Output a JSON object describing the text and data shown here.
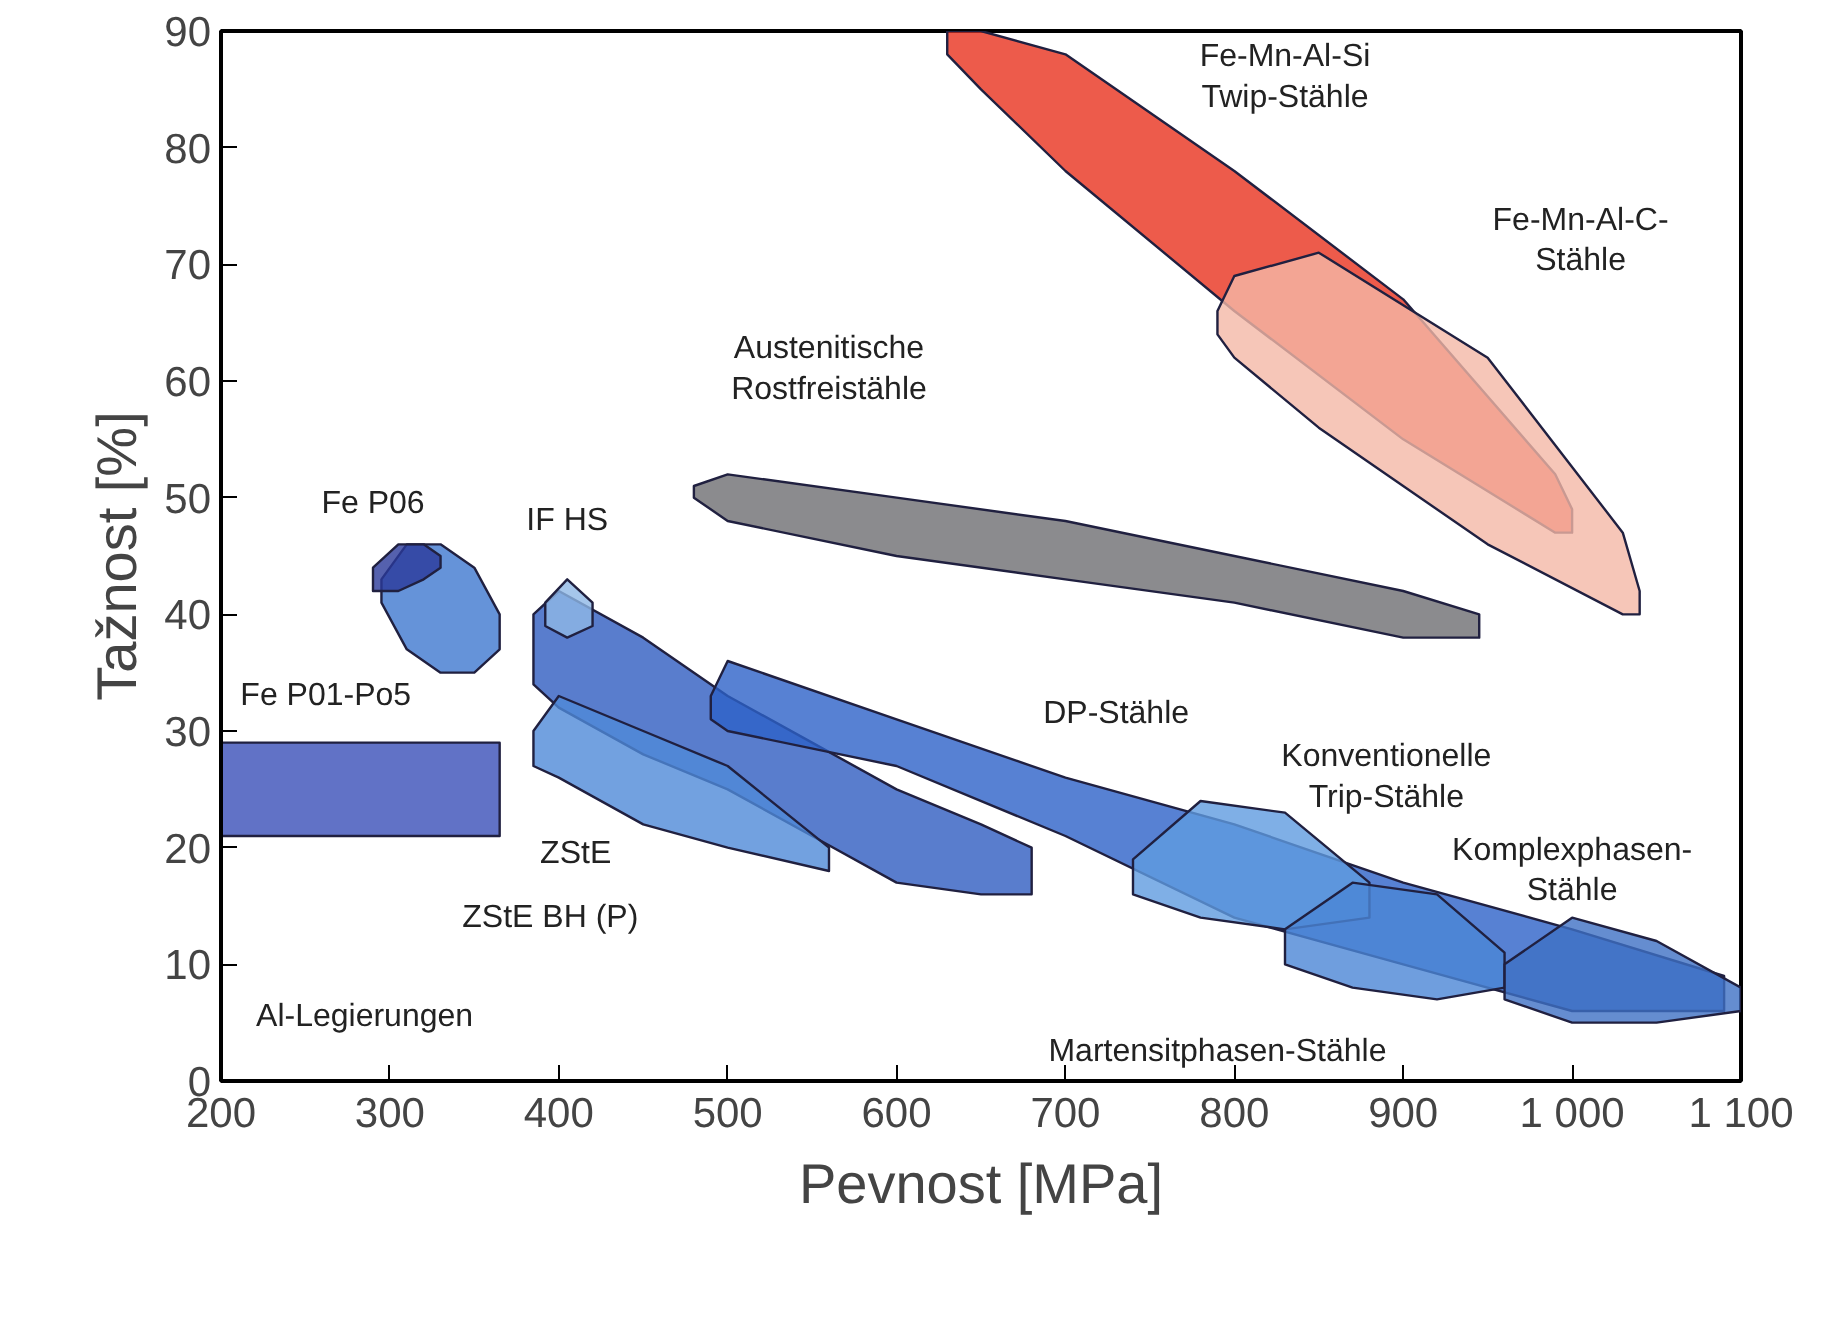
{
  "chart_data": {
    "type": "area",
    "xlabel": "Pevnost [MPa]",
    "ylabel": "Tažnost [%]",
    "xlim": [
      200,
      1100
    ],
    "ylim": [
      0,
      90
    ],
    "xticks": [
      200,
      300,
      400,
      500,
      600,
      700,
      800,
      900,
      {
        "value": 1000,
        "label": "1 000"
      },
      {
        "value": 1100,
        "label": "1 100"
      }
    ],
    "yticks": [
      0,
      10,
      20,
      30,
      40,
      50,
      60,
      70,
      80,
      90
    ],
    "grid": false,
    "series": [
      {
        "color": "#3a4fb8",
        "x": [
          200,
          365,
          365,
          200
        ],
        "values": [
          29,
          29,
          21,
          21
        ]
      },
      {
        "color": "#3f78d0",
        "x": [
          295,
          310,
          330,
          350,
          365,
          365,
          350,
          330,
          310,
          295
        ],
        "values": [
          43,
          46,
          46,
          44,
          40,
          37,
          35,
          35,
          37,
          41
        ]
      },
      {
        "color": "#2a3a9a",
        "x": [
          290,
          305,
          320,
          330,
          330,
          320,
          305,
          290
        ],
        "values": [
          44,
          46,
          46,
          45,
          44,
          43,
          42,
          42
        ]
      },
      {
        "color": "#2f5cc0",
        "x": [
          385,
          400,
          450,
          500,
          550,
          600,
          650,
          680,
          680,
          650,
          600,
          550,
          500,
          450,
          400,
          385
        ],
        "values": [
          40,
          42,
          38,
          33,
          29,
          25,
          22,
          20,
          16,
          16,
          17,
          21,
          25,
          28,
          32,
          34
        ]
      },
      {
        "color": "#4f8ad8",
        "x": [
          385,
          400,
          450,
          500,
          560,
          560,
          500,
          450,
          400,
          385
        ],
        "values": [
          30,
          33,
          30,
          27,
          20,
          18,
          20,
          22,
          26,
          27
        ]
      },
      {
        "color": "#8fb8e6",
        "x": [
          392,
          405,
          420,
          420,
          405,
          392
        ],
        "values": [
          41,
          43,
          41,
          39,
          38,
          39
        ]
      },
      {
        "color": "#2d62c8",
        "x": [
          490,
          500,
          600,
          700,
          800,
          900,
          1000,
          1090,
          1090,
          1000,
          900,
          800,
          700,
          600,
          500,
          490
        ],
        "values": [
          33,
          36,
          31,
          26,
          22,
          17,
          13,
          9,
          6,
          6,
          10,
          14,
          21,
          27,
          30,
          31
        ]
      },
      {
        "color": "#5f9be0",
        "x": [
          740,
          780,
          830,
          880,
          880,
          830,
          780,
          740
        ],
        "values": [
          19,
          24,
          23,
          17,
          14,
          13,
          14,
          16
        ]
      },
      {
        "color": "#4b86d6",
        "x": [
          830,
          870,
          920,
          960,
          960,
          920,
          870,
          830
        ],
        "values": [
          13,
          17,
          16,
          11,
          8,
          7,
          8,
          10
        ]
      },
      {
        "color": "#3f70c4",
        "x": [
          960,
          1000,
          1050,
          1100,
          1100,
          1050,
          1000,
          960
        ],
        "values": [
          10,
          14,
          12,
          8,
          6,
          5,
          5,
          7
        ]
      },
      {
        "color": "#6e6e72",
        "x": [
          480,
          500,
          600,
          700,
          800,
          900,
          945,
          945,
          900,
          800,
          700,
          600,
          500,
          480
        ],
        "values": [
          51,
          52,
          50,
          48,
          45,
          42,
          40,
          38,
          38,
          41,
          43,
          45,
          48,
          50
        ]
      },
      {
        "color": "#e8321e",
        "x": [
          630,
          650,
          700,
          800,
          900,
          990,
          1000,
          1000,
          990,
          900,
          800,
          700,
          650,
          630
        ],
        "values": [
          90,
          90,
          88,
          78,
          67,
          52,
          49,
          47,
          47,
          55,
          66,
          78,
          85,
          88
        ]
      },
      {
        "color": "#f4b8a6",
        "x": [
          790,
          800,
          850,
          950,
          1030,
          1040,
          1040,
          1030,
          950,
          850,
          800,
          790
        ],
        "values": [
          66,
          69,
          71,
          62,
          47,
          42,
          40,
          40,
          46,
          56,
          62,
          64
        ]
      }
    ],
    "annotations": [
      "Fe-Mn-Al-Si\nTwip-Stähle",
      "Fe-Mn-Al-C-\nStähle",
      "Austenitische\nRostfreistähle",
      "Fe P06",
      "IF HS",
      "Fe P01-Po5",
      "DP-Stähle",
      "Konventionelle\nTrip-Stähle",
      "Komplexphasen-\nStähle",
      "ZStE",
      "ZStE BH (P)",
      "Al-Legierungen",
      "Martensitphasen-Stähle"
    ]
  }
}
